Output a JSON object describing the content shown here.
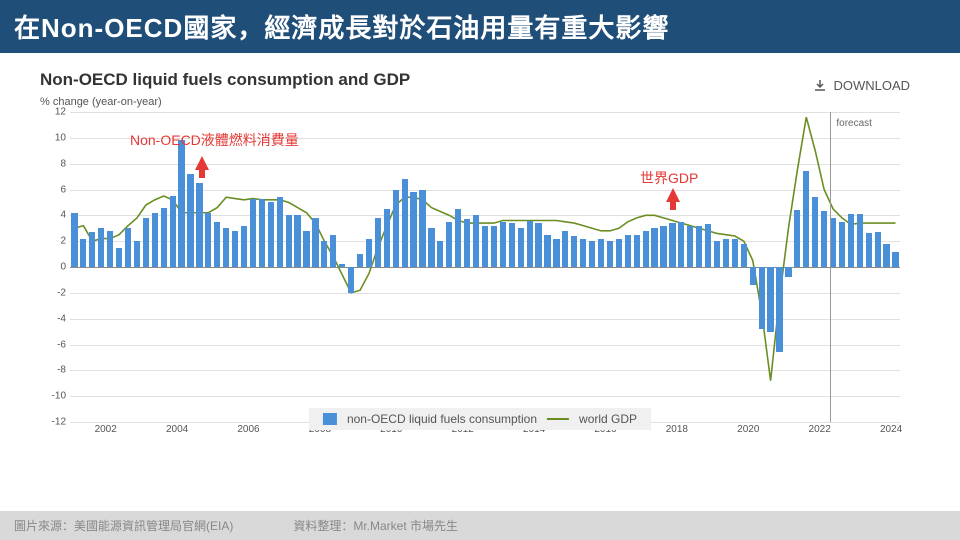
{
  "title": "在Non-OECD國家，經濟成長對於石油用量有重大影響",
  "chart": {
    "title": "Non-OECD liquid fuels consumption and GDP",
    "download_label": "DOWNLOAD",
    "ylabel": "% change (year-on-year)",
    "type": "bar+line",
    "ylim": [
      -12,
      12
    ],
    "ytick_step": 2,
    "bar_color": "#4a90d9",
    "line_color": "#6b8e23",
    "grid_color": "#e0e0e0",
    "background_color": "#ffffff",
    "xticks": [
      2002,
      2004,
      2006,
      2008,
      2010,
      2012,
      2014,
      2016,
      2018,
      2020,
      2022,
      2024
    ],
    "x_start": 2001.0,
    "x_end": 2024.25,
    "forecast_x": 2022.3,
    "forecast_label": "forecast",
    "bars": [
      4.2,
      2.2,
      2.7,
      3.0,
      2.8,
      1.5,
      3.0,
      2.0,
      3.8,
      4.2,
      4.6,
      5.5,
      9.8,
      7.2,
      6.5,
      4.2,
      3.5,
      3.0,
      2.8,
      3.2,
      5.3,
      5.3,
      5.0,
      5.4,
      4.0,
      4.0,
      2.8,
      3.8,
      2.0,
      2.5,
      0.2,
      -2.0,
      1.0,
      2.2,
      3.8,
      4.5,
      6.0,
      6.8,
      5.8,
      6.0,
      3.0,
      2.0,
      3.5,
      4.5,
      3.7,
      4.0,
      3.2,
      3.2,
      3.5,
      3.4,
      3.0,
      3.6,
      3.4,
      2.5,
      2.2,
      2.8,
      2.4,
      2.2,
      2.0,
      2.2,
      2.0,
      2.2,
      2.5,
      2.5,
      2.8,
      3.0,
      3.2,
      3.4,
      3.5,
      3.2,
      3.2,
      3.3,
      2.0,
      2.2,
      2.2,
      1.8,
      -1.4,
      -4.8,
      -5.0,
      -6.6,
      -0.8,
      4.4,
      7.4,
      5.4,
      4.3,
      3.8,
      3.5,
      4.1,
      4.1,
      2.6,
      2.7,
      1.8,
      1.2
    ],
    "line": [
      3.0,
      3.2,
      2.0,
      2.2,
      2.2,
      2.5,
      3.2,
      3.8,
      4.8,
      5.2,
      5.5,
      5.2,
      4.2,
      4.2,
      4.2,
      4.2,
      4.6,
      5.4,
      5.3,
      5.2,
      5.3,
      5.2,
      5.2,
      5.2,
      5.0,
      4.6,
      4.2,
      3.4,
      2.0,
      0.8,
      -0.6,
      -2.0,
      -1.8,
      -0.5,
      1.5,
      3.2,
      4.8,
      5.4,
      5.4,
      5.2,
      4.6,
      4.3,
      4.0,
      3.6,
      3.4,
      3.4,
      3.4,
      3.4,
      3.6,
      3.6,
      3.6,
      3.6,
      3.6,
      3.6,
      3.6,
      3.5,
      3.4,
      3.2,
      3.0,
      2.8,
      2.8,
      3.0,
      3.5,
      3.8,
      4.0,
      4.0,
      3.8,
      3.6,
      3.4,
      3.2,
      3.0,
      2.8,
      2.6,
      2.5,
      2.4,
      2.0,
      0.5,
      -3.5,
      -8.8,
      -2.4,
      3.0,
      7.5,
      11.6,
      9.0,
      6.0,
      4.5,
      3.8,
      3.3,
      3.4,
      3.4,
      3.4,
      3.4,
      3.4
    ],
    "legend": {
      "bar_label": "non-OECD liquid fuels consumption",
      "line_label": "world GDP"
    },
    "annotations": {
      "bar_label": "Non-OECD液體燃料消費量",
      "line_label": "世界GDP"
    }
  },
  "footer": {
    "source": "圖片來源：美國能源資訊管理局官網(EIA)",
    "compiled": "資料整理：Mr.Market  市場先生"
  },
  "colors": {
    "title_bg": "#1f4e79",
    "annotation": "#e53935",
    "footer_bg": "#d9d9d9"
  }
}
